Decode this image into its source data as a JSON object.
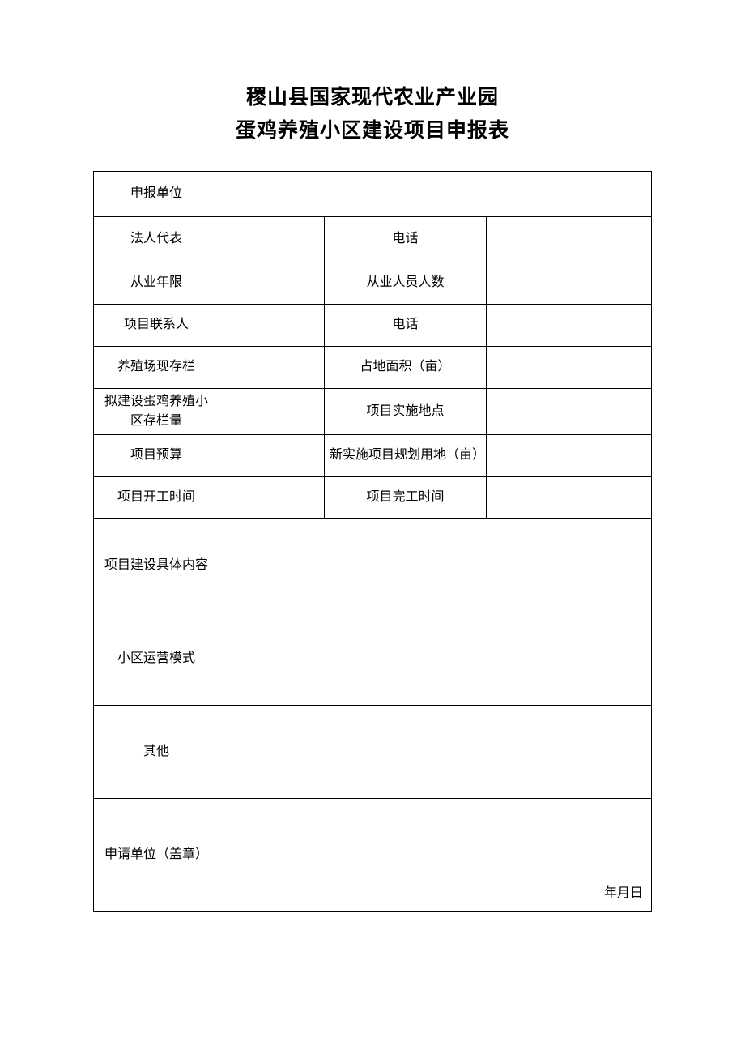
{
  "title_line1": "稷山县国家现代农业产业园",
  "title_line2": "蛋鸡养殖小区建设项目申报表",
  "rows": {
    "applicant_unit": {
      "label": "申报单位",
      "value": ""
    },
    "legal_rep": {
      "label": "法人代表",
      "value": "",
      "label2": "电话",
      "value2": ""
    },
    "years_in_business": {
      "label": "从业年限",
      "value": "",
      "label2": "从业人员人数",
      "value2": ""
    },
    "project_contact": {
      "label": "项目联系人",
      "value": "",
      "label2": "电话",
      "value2": ""
    },
    "farm_current_stock": {
      "label": "养殖场现存栏",
      "value": "",
      "label2": "占地面积（亩）",
      "value2": ""
    },
    "planned_capacity": {
      "label": "拟建设蛋鸡养殖小区存栏量",
      "value": "",
      "label2": "项目实施地点",
      "value2": ""
    },
    "project_budget": {
      "label": "项目预算",
      "value": "",
      "label2": "新实施项目规划用地（亩）",
      "value2": ""
    },
    "start_date": {
      "label": "项目开工时间",
      "value": "",
      "label2": "项目完工时间",
      "value2": ""
    },
    "construction_content": {
      "label": "项目建设具体内容",
      "value": ""
    },
    "operation_mode": {
      "label": "小区运营模式",
      "value": ""
    },
    "other": {
      "label": "其他",
      "value": ""
    },
    "seal": {
      "label": "申请单位（盖章）",
      "date": "年月日"
    }
  },
  "colors": {
    "text": "#000000",
    "border": "#000000",
    "background": "#ffffff"
  },
  "font": {
    "title_size_pt": 19,
    "body_size_pt": 12,
    "family": "SimSun"
  }
}
